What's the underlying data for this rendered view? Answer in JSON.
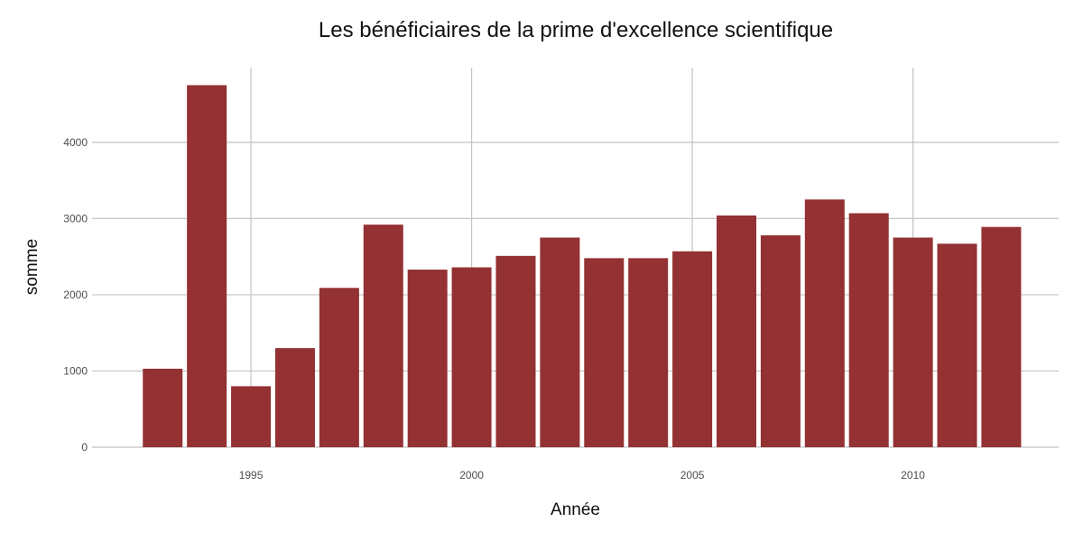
{
  "chart_data": {
    "type": "bar",
    "title": "Les bénéficiaires de la prime d'excellence scientifique",
    "xlabel": "Année",
    "ylabel": "somme",
    "x": [
      1993,
      1994,
      1995,
      1996,
      1997,
      1998,
      1999,
      2000,
      2001,
      2002,
      2003,
      2004,
      2005,
      2006,
      2007,
      2008,
      2009,
      2010,
      2011,
      2012
    ],
    "values": [
      1030,
      4750,
      800,
      1300,
      2090,
      2920,
      2330,
      2360,
      2510,
      2750,
      2480,
      2480,
      2570,
      3040,
      2780,
      3250,
      3070,
      2750,
      2670,
      2890
    ],
    "xlim": [
      1991.4,
      2013.3
    ],
    "ylim": [
      0,
      4980
    ],
    "x_ticks": [
      1995,
      2000,
      2005,
      2010
    ],
    "y_ticks": [
      0,
      1000,
      2000,
      3000,
      4000
    ],
    "grid": true,
    "legend": "none",
    "colors": {
      "bar": "#943132",
      "grid": "#c4c4c4"
    }
  }
}
